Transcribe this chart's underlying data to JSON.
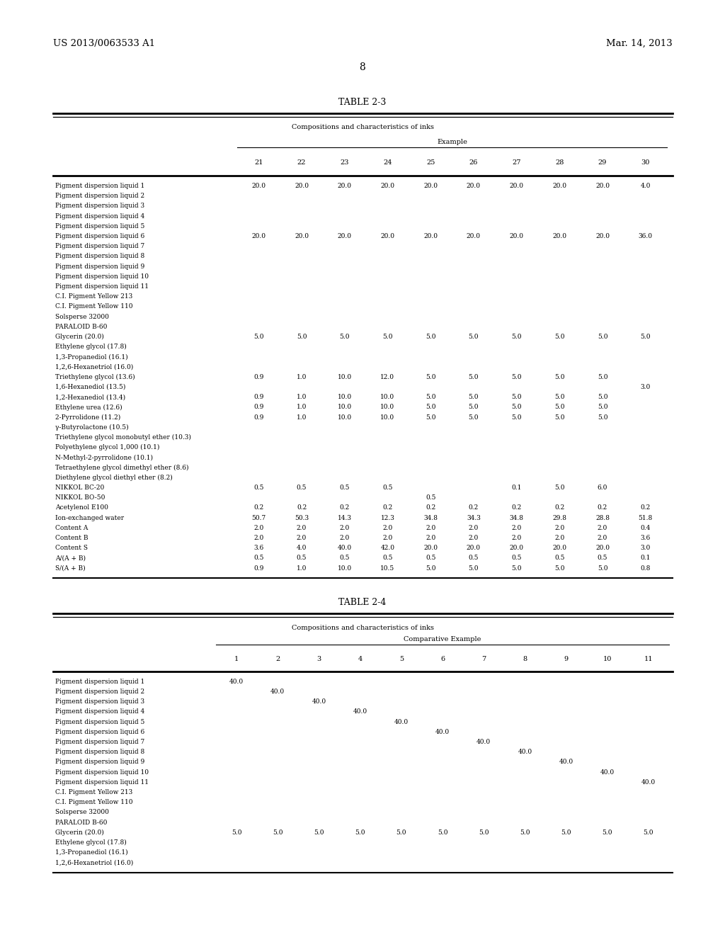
{
  "bg_color": "#ffffff",
  "header_left": "US 2013/0063533 A1",
  "header_right": "Mar. 14, 2013",
  "page_number": "8",
  "table1_title": "TABLE 2-3",
  "table1_subtitle": "Compositions and characteristics of inks",
  "table1_group_label": "Example",
  "table1_columns": [
    "21",
    "22",
    "23",
    "24",
    "25",
    "26",
    "27",
    "28",
    "29",
    "30"
  ],
  "table1_rows": [
    [
      "Pigment dispersion liquid 1",
      "20.0",
      "20.0",
      "20.0",
      "20.0",
      "20.0",
      "20.0",
      "20.0",
      "20.0",
      "20.0",
      "4.0"
    ],
    [
      "Pigment dispersion liquid 2",
      "",
      "",
      "",
      "",
      "",
      "",
      "",
      "",
      "",
      ""
    ],
    [
      "Pigment dispersion liquid 3",
      "",
      "",
      "",
      "",
      "",
      "",
      "",
      "",
      "",
      ""
    ],
    [
      "Pigment dispersion liquid 4",
      "",
      "",
      "",
      "",
      "",
      "",
      "",
      "",
      "",
      ""
    ],
    [
      "Pigment dispersion liquid 5",
      "",
      "",
      "",
      "",
      "",
      "",
      "",
      "",
      "",
      ""
    ],
    [
      "Pigment dispersion liquid 6",
      "20.0",
      "20.0",
      "20.0",
      "20.0",
      "20.0",
      "20.0",
      "20.0",
      "20.0",
      "20.0",
      "36.0"
    ],
    [
      "Pigment dispersion liquid 7",
      "",
      "",
      "",
      "",
      "",
      "",
      "",
      "",
      "",
      ""
    ],
    [
      "Pigment dispersion liquid 8",
      "",
      "",
      "",
      "",
      "",
      "",
      "",
      "",
      "",
      ""
    ],
    [
      "Pigment dispersion liquid 9",
      "",
      "",
      "",
      "",
      "",
      "",
      "",
      "",
      "",
      ""
    ],
    [
      "Pigment dispersion liquid 10",
      "",
      "",
      "",
      "",
      "",
      "",
      "",
      "",
      "",
      ""
    ],
    [
      "Pigment dispersion liquid 11",
      "",
      "",
      "",
      "",
      "",
      "",
      "",
      "",
      "",
      ""
    ],
    [
      "C.I. Pigment Yellow 213",
      "",
      "",
      "",
      "",
      "",
      "",
      "",
      "",
      "",
      ""
    ],
    [
      "C.I. Pigment Yellow 110",
      "",
      "",
      "",
      "",
      "",
      "",
      "",
      "",
      "",
      ""
    ],
    [
      "Solsperse 32000",
      "",
      "",
      "",
      "",
      "",
      "",
      "",
      "",
      "",
      ""
    ],
    [
      "PARALOID B-60",
      "",
      "",
      "",
      "",
      "",
      "",
      "",
      "",
      "",
      ""
    ],
    [
      "Glycerin (20.0)",
      "5.0",
      "5.0",
      "5.0",
      "5.0",
      "5.0",
      "5.0",
      "5.0",
      "5.0",
      "5.0",
      "5.0"
    ],
    [
      "Ethylene glycol (17.8)",
      "",
      "",
      "",
      "",
      "",
      "",
      "",
      "",
      "",
      ""
    ],
    [
      "1,3-Propanediol (16.1)",
      "",
      "",
      "",
      "",
      "",
      "",
      "",
      "",
      "",
      ""
    ],
    [
      "1,2,6-Hexanetriol (16.0)",
      "",
      "",
      "",
      "",
      "",
      "",
      "",
      "",
      "",
      ""
    ],
    [
      "Triethylene glycol (13.6)",
      "0.9",
      "1.0",
      "10.0",
      "12.0",
      "5.0",
      "5.0",
      "5.0",
      "5.0",
      "5.0",
      ""
    ],
    [
      "1,6-Hexanediol (13.5)",
      "",
      "",
      "",
      "",
      "",
      "",
      "",
      "",
      "",
      "3.0"
    ],
    [
      "1,2-Hexanediol (13.4)",
      "0.9",
      "1.0",
      "10.0",
      "10.0",
      "5.0",
      "5.0",
      "5.0",
      "5.0",
      "5.0",
      ""
    ],
    [
      "Ethylene urea (12.6)",
      "0.9",
      "1.0",
      "10.0",
      "10.0",
      "5.0",
      "5.0",
      "5.0",
      "5.0",
      "5.0",
      ""
    ],
    [
      "2-Pyrrolidone (11.2)",
      "0.9",
      "1.0",
      "10.0",
      "10.0",
      "5.0",
      "5.0",
      "5.0",
      "5.0",
      "5.0",
      ""
    ],
    [
      "γ-Butyrolactone (10.5)",
      "",
      "",
      "",
      "",
      "",
      "",
      "",
      "",
      "",
      ""
    ],
    [
      "Triethylene glycol monobutyl ether (10.3)",
      "",
      "",
      "",
      "",
      "",
      "",
      "",
      "",
      "",
      ""
    ],
    [
      "Polyethylene glycol 1,000 (10.1)",
      "",
      "",
      "",
      "",
      "",
      "",
      "",
      "",
      "",
      ""
    ],
    [
      "N-Methyl-2-pyrrolidone (10.1)",
      "",
      "",
      "",
      "",
      "",
      "",
      "",
      "",
      "",
      ""
    ],
    [
      "Tetraethylene glycol dimethyl ether (8.6)",
      "",
      "",
      "",
      "",
      "",
      "",
      "",
      "",
      "",
      ""
    ],
    [
      "Diethylene glycol diethyl ether (8.2)",
      "",
      "",
      "",
      "",
      "",
      "",
      "",
      "",
      "",
      ""
    ],
    [
      "NIKKOL BC-20",
      "0.5",
      "0.5",
      "0.5",
      "0.5",
      "",
      "",
      "0.1",
      "5.0",
      "6.0",
      ""
    ],
    [
      "NIKKOL BO-50",
      "",
      "",
      "",
      "",
      "0.5",
      "",
      "",
      "",
      "",
      ""
    ],
    [
      "Acetylenol E100",
      "0.2",
      "0.2",
      "0.2",
      "0.2",
      "0.2",
      "0.2",
      "0.2",
      "0.2",
      "0.2",
      "0.2"
    ],
    [
      "Ion-exchanged water",
      "50.7",
      "50.3",
      "14.3",
      "12.3",
      "34.8",
      "34.3",
      "34.8",
      "29.8",
      "28.8",
      "51.8"
    ],
    [
      "Content A",
      "2.0",
      "2.0",
      "2.0",
      "2.0",
      "2.0",
      "2.0",
      "2.0",
      "2.0",
      "2.0",
      "0.4"
    ],
    [
      "Content B",
      "2.0",
      "2.0",
      "2.0",
      "2.0",
      "2.0",
      "2.0",
      "2.0",
      "2.0",
      "2.0",
      "3.6"
    ],
    [
      "Content S",
      "3.6",
      "4.0",
      "40.0",
      "42.0",
      "20.0",
      "20.0",
      "20.0",
      "20.0",
      "20.0",
      "3.0"
    ],
    [
      "A/(A + B)",
      "0.5",
      "0.5",
      "0.5",
      "0.5",
      "0.5",
      "0.5",
      "0.5",
      "0.5",
      "0.5",
      "0.1"
    ],
    [
      "S/(A + B)",
      "0.9",
      "1.0",
      "10.0",
      "10.5",
      "5.0",
      "5.0",
      "5.0",
      "5.0",
      "5.0",
      "0.8"
    ]
  ],
  "table2_title": "TABLE 2-4",
  "table2_subtitle": "Compositions and characteristics of inks",
  "table2_group_label": "Comparative Example",
  "table2_columns": [
    "1",
    "2",
    "3",
    "4",
    "5",
    "6",
    "7",
    "8",
    "9",
    "10",
    "11"
  ],
  "table2_rows": [
    [
      "Pigment dispersion liquid 1",
      "40.0",
      "",
      "",
      "",
      "",
      "",
      "",
      "",
      "",
      "",
      ""
    ],
    [
      "Pigment dispersion liquid 2",
      "",
      "40.0",
      "",
      "",
      "",
      "",
      "",
      "",
      "",
      "",
      ""
    ],
    [
      "Pigment dispersion liquid 3",
      "",
      "",
      "40.0",
      "",
      "",
      "",
      "",
      "",
      "",
      "",
      ""
    ],
    [
      "Pigment dispersion liquid 4",
      "",
      "",
      "",
      "40.0",
      "",
      "",
      "",
      "",
      "",
      "",
      ""
    ],
    [
      "Pigment dispersion liquid 5",
      "",
      "",
      "",
      "",
      "40.0",
      "",
      "",
      "",
      "",
      "",
      ""
    ],
    [
      "Pigment dispersion liquid 6",
      "",
      "",
      "",
      "",
      "",
      "40.0",
      "",
      "",
      "",
      "",
      ""
    ],
    [
      "Pigment dispersion liquid 7",
      "",
      "",
      "",
      "",
      "",
      "",
      "40.0",
      "",
      "",
      "",
      ""
    ],
    [
      "Pigment dispersion liquid 8",
      "",
      "",
      "",
      "",
      "",
      "",
      "",
      "40.0",
      "",
      "",
      ""
    ],
    [
      "Pigment dispersion liquid 9",
      "",
      "",
      "",
      "",
      "",
      "",
      "",
      "",
      "40.0",
      "",
      ""
    ],
    [
      "Pigment dispersion liquid 10",
      "",
      "",
      "",
      "",
      "",
      "",
      "",
      "",
      "",
      "40.0",
      ""
    ],
    [
      "Pigment dispersion liquid 11",
      "",
      "",
      "",
      "",
      "",
      "",
      "",
      "",
      "",
      "",
      "40.0"
    ],
    [
      "C.I. Pigment Yellow 213",
      "",
      "",
      "",
      "",
      "",
      "",
      "",
      "",
      "",
      "",
      ""
    ],
    [
      "C.I. Pigment Yellow 110",
      "",
      "",
      "",
      "",
      "",
      "",
      "",
      "",
      "",
      "",
      ""
    ],
    [
      "Solsperse 32000",
      "",
      "",
      "",
      "",
      "",
      "",
      "",
      "",
      "",
      "",
      ""
    ],
    [
      "PARALOID B-60",
      "",
      "",
      "",
      "",
      "",
      "",
      "",
      "",
      "",
      "",
      ""
    ],
    [
      "Glycerin (20.0)",
      "5.0",
      "5.0",
      "5.0",
      "5.0",
      "5.0",
      "5.0",
      "5.0",
      "5.0",
      "5.0",
      "5.0",
      "5.0"
    ],
    [
      "Ethylene glycol (17.8)",
      "",
      "",
      "",
      "",
      "",
      "",
      "",
      "",
      "",
      "",
      ""
    ],
    [
      "1,3-Propanediol (16.1)",
      "",
      "",
      "",
      "",
      "",
      "",
      "",
      "",
      "",
      "",
      ""
    ],
    [
      "1,2,6-Hexanetriol (16.0)",
      "",
      "",
      "",
      "",
      "",
      "",
      "",
      "",
      "",
      "",
      ""
    ]
  ]
}
